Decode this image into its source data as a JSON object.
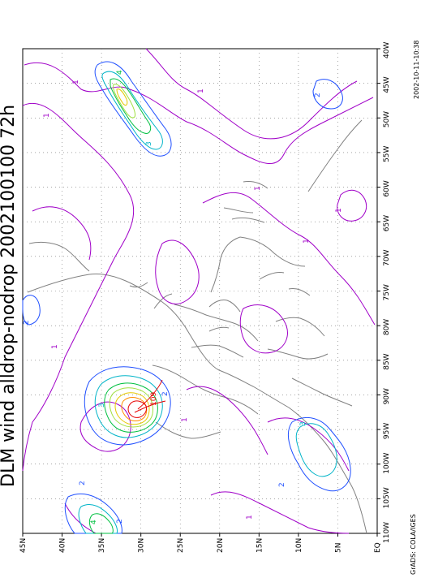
{
  "title": "DLM wind alldrop-nodrop 2002100100 72h",
  "timestamp": "2002-10-11-10:38",
  "credit": "GrADS: COLA/IGES",
  "lat_labels": [
    "45N",
    "40N",
    "35N",
    "30N",
    "25N",
    "20N",
    "15N",
    "10N",
    "5N",
    "EQ"
  ],
  "lon_labels": [
    "40W",
    "45W",
    "50W",
    "55W",
    "60W",
    "65W",
    "70W",
    "75W",
    "80W",
    "85W",
    "90W",
    "95W",
    "100W",
    "105W",
    "110W"
  ],
  "contour_labels": {
    "max_value": "109",
    "generic": [
      "1",
      "2",
      "3",
      "4"
    ]
  },
  "colors": {
    "contour_1": "#a000c8",
    "contour_2": "#2050ff",
    "contour_3": "#00b4c8",
    "contour_4": "#00c040",
    "contour_5": "#a0e040",
    "contour_6": "#e6c800",
    "contour_7": "#ff8c00",
    "contour_max": "#e60000",
    "coastline": "#808080",
    "grid": "#707070"
  }
}
